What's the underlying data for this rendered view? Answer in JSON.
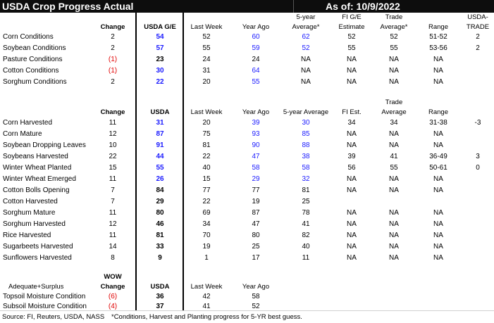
{
  "header": {
    "title": "USDA Crop Progress Actual",
    "as_of": "As of:  10/9/2022"
  },
  "conditions": {
    "headers": {
      "change": "Change",
      "usda": "USDA G/E",
      "last_week": "Last Week",
      "year_ago": "Year Ago",
      "avg_line1": "5-year",
      "avg_line2": "Average*",
      "fi_line1": "FI G/E",
      "fi_line2": "Estimate",
      "trade_line1": "Trade",
      "trade_line2": "Average*",
      "range": "Range",
      "usda_trade_line1": "USDA-",
      "usda_trade_line2": "TRADE"
    },
    "rows": [
      {
        "label": "Corn Conditions",
        "change": "2",
        "change_red": false,
        "usda": "54",
        "usda_blue": true,
        "last_week": "52",
        "year_ago": "60",
        "year_ago_blue": true,
        "avg": "62",
        "avg_blue": true,
        "fi": "52",
        "trade": "52",
        "range": "51-52",
        "diff": "2"
      },
      {
        "label": "Soybean Conditions",
        "change": "2",
        "change_red": false,
        "usda": "57",
        "usda_blue": true,
        "last_week": "55",
        "year_ago": "59",
        "year_ago_blue": true,
        "avg": "52",
        "avg_blue": true,
        "fi": "55",
        "trade": "55",
        "range": "53-56",
        "diff": "2"
      },
      {
        "label": "Pasture Conditions",
        "change": "(1)",
        "change_red": true,
        "usda": "23",
        "usda_blue": false,
        "last_week": "24",
        "year_ago": "24",
        "year_ago_blue": false,
        "avg": "NA",
        "avg_blue": false,
        "fi": "NA",
        "trade": "NA",
        "range": "NA",
        "diff": ""
      },
      {
        "label": "Cotton Conditions",
        "change": "(1)",
        "change_red": true,
        "usda": "30",
        "usda_blue": true,
        "last_week": "31",
        "year_ago": "64",
        "year_ago_blue": true,
        "avg": "NA",
        "avg_blue": false,
        "fi": "NA",
        "trade": "NA",
        "range": "NA",
        "diff": ""
      },
      {
        "label": "Sorghum Conditions",
        "change": "2",
        "change_red": false,
        "usda": "22",
        "usda_blue": true,
        "last_week": "20",
        "year_ago": "55",
        "year_ago_blue": true,
        "avg": "NA",
        "avg_blue": false,
        "fi": "NA",
        "trade": "NA",
        "range": "NA",
        "diff": ""
      }
    ]
  },
  "progress": {
    "headers": {
      "change": "Change",
      "usda": "USDA",
      "last_week": "Last Week",
      "year_ago": "Year Ago",
      "avg": "5-year Average",
      "fi": "FI Est.",
      "trade_line1": "Trade",
      "trade_line2": "Average",
      "range": "Range"
    },
    "rows": [
      {
        "label": "Corn Harvested",
        "change": "11",
        "usda": "31",
        "usda_blue": true,
        "last_week": "20",
        "year_ago": "39",
        "year_ago_blue": true,
        "avg": "30",
        "avg_blue": true,
        "fi": "34",
        "trade": "34",
        "range": "31-38",
        "diff": "-3"
      },
      {
        "label": "Corn Mature",
        "change": "12",
        "usda": "87",
        "usda_blue": true,
        "last_week": "75",
        "year_ago": "93",
        "year_ago_blue": true,
        "avg": "85",
        "avg_blue": true,
        "fi": "NA",
        "trade": "NA",
        "range": "NA",
        "diff": ""
      },
      {
        "label": "Soybean Dropping Leaves",
        "change": "10",
        "usda": "91",
        "usda_blue": true,
        "last_week": "81",
        "year_ago": "90",
        "year_ago_blue": true,
        "avg": "88",
        "avg_blue": true,
        "fi": "NA",
        "trade": "NA",
        "range": "NA",
        "diff": ""
      },
      {
        "label": "Soybeans Harvested",
        "change": "22",
        "usda": "44",
        "usda_blue": true,
        "last_week": "22",
        "year_ago": "47",
        "year_ago_blue": true,
        "avg": "38",
        "avg_blue": true,
        "fi": "39",
        "trade": "41",
        "range": "36-49",
        "diff": "3"
      },
      {
        "label": "Winter Wheat Planted",
        "change": "15",
        "usda": "55",
        "usda_blue": true,
        "last_week": "40",
        "year_ago": "58",
        "year_ago_blue": true,
        "avg": "58",
        "avg_blue": true,
        "fi": "56",
        "trade": "55",
        "range": "50-61",
        "diff": "0"
      },
      {
        "label": "Winter Wheat Emerged",
        "change": "11",
        "usda": "26",
        "usda_blue": true,
        "last_week": "15",
        "year_ago": "29",
        "year_ago_blue": true,
        "avg": "32",
        "avg_blue": true,
        "fi": "NA",
        "trade": "NA",
        "range": "NA",
        "diff": ""
      },
      {
        "label": "Cotton Bolls Opening",
        "change": "7",
        "usda": "84",
        "usda_blue": false,
        "last_week": "77",
        "year_ago": "77",
        "year_ago_blue": false,
        "avg": "81",
        "avg_blue": false,
        "fi": "NA",
        "trade": "NA",
        "range": "NA",
        "diff": ""
      },
      {
        "label": "Cotton Harvested",
        "change": "7",
        "usda": "29",
        "usda_blue": false,
        "last_week": "22",
        "year_ago": "19",
        "year_ago_blue": false,
        "avg": "25",
        "avg_blue": false,
        "fi": "",
        "trade": "",
        "range": "",
        "diff": ""
      },
      {
        "label": "Sorghum Mature",
        "change": "11",
        "usda": "80",
        "usda_blue": false,
        "last_week": "69",
        "year_ago": "87",
        "year_ago_blue": false,
        "avg": "78",
        "avg_blue": false,
        "fi": "NA",
        "trade": "NA",
        "range": "NA",
        "diff": ""
      },
      {
        "label": "Sorghum Harvested",
        "change": "12",
        "usda": "46",
        "usda_blue": false,
        "last_week": "34",
        "year_ago": "47",
        "year_ago_blue": false,
        "avg": "41",
        "avg_blue": false,
        "fi": "NA",
        "trade": "NA",
        "range": "NA",
        "diff": ""
      },
      {
        "label": "Rice Harvested",
        "change": "11",
        "usda": "81",
        "usda_blue": false,
        "last_week": "70",
        "year_ago": "80",
        "year_ago_blue": false,
        "avg": "82",
        "avg_blue": false,
        "fi": "NA",
        "trade": "NA",
        "range": "NA",
        "diff": ""
      },
      {
        "label": "Sugarbeets Harvested",
        "change": "14",
        "usda": "33",
        "usda_blue": false,
        "last_week": "19",
        "year_ago": "25",
        "year_ago_blue": false,
        "avg": "40",
        "avg_blue": false,
        "fi": "NA",
        "trade": "NA",
        "range": "NA",
        "diff": ""
      },
      {
        "label": "Sunflowers Harvested",
        "change": "8",
        "usda": "9",
        "usda_blue": false,
        "last_week": "1",
        "year_ago": "17",
        "year_ago_blue": false,
        "avg": "11",
        "avg_blue": false,
        "fi": "NA",
        "trade": "NA",
        "range": "NA",
        "diff": ""
      }
    ]
  },
  "moisture": {
    "headers": {
      "section_label": "Adequate+Surplus",
      "wow": "WOW",
      "change": "Change",
      "usda": "USDA",
      "last_week": "Last Week",
      "year_ago": "Year Ago"
    },
    "rows": [
      {
        "label": "Topsoil Moisture Condition",
        "change": "(6)",
        "usda": "36",
        "last_week": "42",
        "year_ago": "58"
      },
      {
        "label": "Subsoil Moisture Condition",
        "change": "(4)",
        "usda": "37",
        "last_week": "41",
        "year_ago": "52"
      }
    ]
  },
  "footer": {
    "source": "Source: FI, Reuters, USDA, NASS",
    "note": "*Conditions, Harvest and Planting progress for 5-YR best guess."
  },
  "colors": {
    "header_bg": "#0d0d0d",
    "blue_value": "#1a1aff",
    "red_value": "#e00000"
  }
}
